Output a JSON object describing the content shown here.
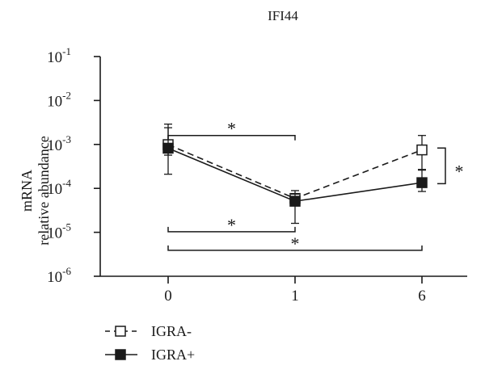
{
  "chart_data": {
    "type": "line",
    "title": "IFI44",
    "ylabel": [
      "mRNA",
      "relative abundance"
    ],
    "xlabel": "",
    "categories": [
      "0",
      "1",
      "6"
    ],
    "yscale": "log",
    "ylim": [
      1e-06,
      0.1
    ],
    "yticks": [
      {
        "value": 1e-06,
        "exp": "-6"
      },
      {
        "value": 1e-05,
        "exp": "-5"
      },
      {
        "value": 0.0001,
        "exp": "-4"
      },
      {
        "value": 0.001,
        "exp": "-3"
      },
      {
        "value": 0.01,
        "exp": "-2"
      },
      {
        "value": 0.1,
        "exp": "-1"
      }
    ],
    "series": [
      {
        "name": "IGRA-",
        "marker": "open-square",
        "line": "dashed",
        "values": [
          0.00099,
          5.9e-05,
          0.00075
        ],
        "err_low": [
          0.00057,
          4e-05,
          0.00026
        ],
        "err_high": [
          0.0029,
          8.9e-05,
          0.0016
        ]
      },
      {
        "name": "IGRA+",
        "marker": "filled-square",
        "line": "solid",
        "values": [
          0.00082,
          5.1e-05,
          0.000135
        ],
        "err_low": [
          0.00021,
          1.6e-05,
          8.5e-05
        ],
        "err_high": [
          0.0024,
          7.4e-05,
          0.00027
        ]
      }
    ],
    "annotations": [
      {
        "text": "*",
        "type": "bracket-above",
        "from": "0",
        "to": "1",
        "level": 0.0016
      },
      {
        "text": "*",
        "type": "bracket-below",
        "from": "0",
        "to": "1",
        "level": 1.03e-05
      },
      {
        "text": "*",
        "type": "bracket-below",
        "from": "0",
        "to": "6",
        "level": 3.9e-06
      },
      {
        "text": "*",
        "type": "vertical-bracket",
        "at": "6",
        "from": 0.00083,
        "to": 0.000128
      }
    ],
    "legend": {
      "placement": "bottom-left"
    }
  }
}
